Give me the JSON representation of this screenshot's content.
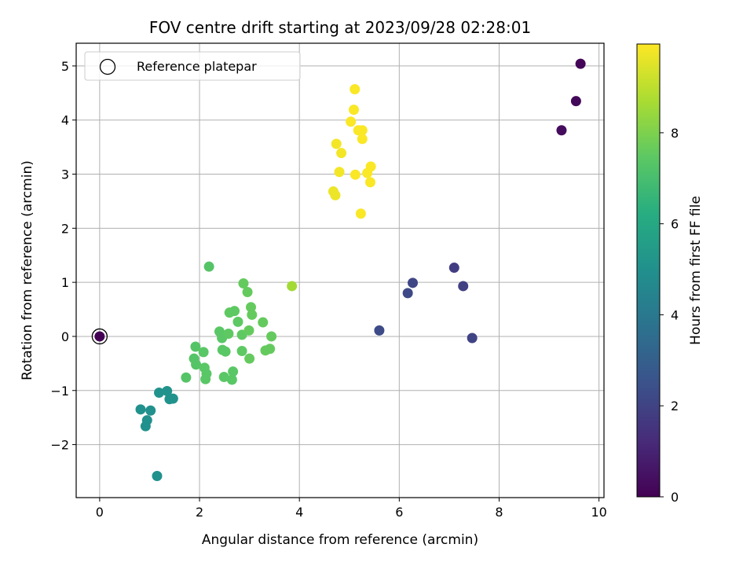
{
  "chart_data": {
    "type": "scatter",
    "title": "FOV centre drift starting at 2023/09/28 02:28:01",
    "xlabel": "Angular distance from reference (arcmin)",
    "ylabel": "Rotation from reference (arcmin)",
    "xlim": [
      -0.47,
      10.1
    ],
    "ylim": [
      -2.98,
      5.42
    ],
    "xticks": [
      0,
      2,
      4,
      6,
      8,
      10
    ],
    "yticks": [
      -2,
      -1,
      0,
      1,
      2,
      3,
      4,
      5
    ],
    "grid": true,
    "legend": {
      "position": "upper-left",
      "entries": [
        "Reference platepar"
      ]
    },
    "reference_point": {
      "x": 0,
      "y": 0,
      "marker": "open-circle"
    },
    "colorbar": {
      "label": "Hours from first FF file",
      "colormap": "viridis",
      "range": [
        0,
        9.95
      ],
      "ticks": [
        0,
        2,
        4,
        6,
        8
      ]
    },
    "points": [
      {
        "x": 0.0,
        "y": 0.0,
        "c": 0.0
      },
      {
        "x": 9.63,
        "y": 5.04,
        "c": 0.1
      },
      {
        "x": 9.54,
        "y": 4.35,
        "c": 0.2
      },
      {
        "x": 9.25,
        "y": 3.81,
        "c": 0.3
      },
      {
        "x": 7.1,
        "y": 1.27,
        "c": 1.8
      },
      {
        "x": 7.28,
        "y": 0.93,
        "c": 1.9
      },
      {
        "x": 7.46,
        "y": -0.03,
        "c": 2.0
      },
      {
        "x": 6.27,
        "y": 0.99,
        "c": 2.1
      },
      {
        "x": 6.17,
        "y": 0.8,
        "c": 2.2
      },
      {
        "x": 5.6,
        "y": 0.11,
        "c": 2.3
      },
      {
        "x": 1.15,
        "y": -2.58,
        "c": 5.0
      },
      {
        "x": 0.82,
        "y": -1.35,
        "c": 5.0
      },
      {
        "x": 1.02,
        "y": -1.37,
        "c": 5.0
      },
      {
        "x": 0.95,
        "y": -1.55,
        "c": 5.0
      },
      {
        "x": 0.92,
        "y": -1.66,
        "c": 5.0
      },
      {
        "x": 1.19,
        "y": -1.04,
        "c": 5.1
      },
      {
        "x": 1.35,
        "y": -1.01,
        "c": 5.1
      },
      {
        "x": 1.4,
        "y": -1.16,
        "c": 5.1
      },
      {
        "x": 1.47,
        "y": -1.15,
        "c": 5.1
      },
      {
        "x": 2.19,
        "y": 1.29,
        "c": 7.3
      },
      {
        "x": 1.73,
        "y": -0.76,
        "c": 7.3
      },
      {
        "x": 1.92,
        "y": -0.19,
        "c": 7.3
      },
      {
        "x": 1.89,
        "y": -0.41,
        "c": 7.3
      },
      {
        "x": 1.93,
        "y": -0.52,
        "c": 7.3
      },
      {
        "x": 2.1,
        "y": -0.58,
        "c": 7.4
      },
      {
        "x": 2.08,
        "y": -0.29,
        "c": 7.4
      },
      {
        "x": 2.14,
        "y": -0.69,
        "c": 7.4
      },
      {
        "x": 2.12,
        "y": -0.79,
        "c": 7.4
      },
      {
        "x": 2.4,
        "y": 0.09,
        "c": 7.4
      },
      {
        "x": 2.45,
        "y": -0.03,
        "c": 7.4
      },
      {
        "x": 2.46,
        "y": -0.25,
        "c": 7.4
      },
      {
        "x": 2.52,
        "y": -0.28,
        "c": 7.4
      },
      {
        "x": 2.49,
        "y": -0.75,
        "c": 7.4
      },
      {
        "x": 2.65,
        "y": -0.8,
        "c": 7.4
      },
      {
        "x": 2.67,
        "y": -0.65,
        "c": 7.4
      },
      {
        "x": 2.58,
        "y": 0.05,
        "c": 7.5
      },
      {
        "x": 2.6,
        "y": 0.44,
        "c": 7.5
      },
      {
        "x": 2.7,
        "y": 0.47,
        "c": 7.5
      },
      {
        "x": 2.77,
        "y": 0.27,
        "c": 7.5
      },
      {
        "x": 2.85,
        "y": 0.03,
        "c": 7.5
      },
      {
        "x": 2.85,
        "y": -0.27,
        "c": 7.5
      },
      {
        "x": 2.88,
        "y": 0.98,
        "c": 7.6
      },
      {
        "x": 2.96,
        "y": 0.82,
        "c": 7.6
      },
      {
        "x": 2.99,
        "y": 0.11,
        "c": 7.6
      },
      {
        "x": 3.0,
        "y": -0.41,
        "c": 7.6
      },
      {
        "x": 3.03,
        "y": 0.54,
        "c": 7.6
      },
      {
        "x": 3.05,
        "y": 0.4,
        "c": 7.6
      },
      {
        "x": 3.27,
        "y": 0.26,
        "c": 7.6
      },
      {
        "x": 3.32,
        "y": -0.26,
        "c": 7.6
      },
      {
        "x": 3.41,
        "y": -0.23,
        "c": 7.6
      },
      {
        "x": 3.44,
        "y": 0.0,
        "c": 7.6
      },
      {
        "x": 3.85,
        "y": 0.93,
        "c": 8.6
      },
      {
        "x": 4.68,
        "y": 2.68,
        "c": 9.7
      },
      {
        "x": 4.72,
        "y": 2.61,
        "c": 9.7
      },
      {
        "x": 4.74,
        "y": 3.56,
        "c": 9.8
      },
      {
        "x": 4.8,
        "y": 3.04,
        "c": 9.8
      },
      {
        "x": 4.84,
        "y": 3.39,
        "c": 9.8
      },
      {
        "x": 5.03,
        "y": 3.97,
        "c": 9.9
      },
      {
        "x": 5.11,
        "y": 4.57,
        "c": 9.9
      },
      {
        "x": 5.09,
        "y": 4.19,
        "c": 9.9
      },
      {
        "x": 5.18,
        "y": 3.81,
        "c": 9.9
      },
      {
        "x": 5.26,
        "y": 3.81,
        "c": 9.9
      },
      {
        "x": 5.26,
        "y": 3.65,
        "c": 9.9
      },
      {
        "x": 5.12,
        "y": 2.99,
        "c": 9.9
      },
      {
        "x": 5.36,
        "y": 3.02,
        "c": 9.9
      },
      {
        "x": 5.43,
        "y": 3.14,
        "c": 9.9
      },
      {
        "x": 5.42,
        "y": 2.85,
        "c": 9.9
      },
      {
        "x": 5.23,
        "y": 2.27,
        "c": 9.9
      }
    ]
  }
}
